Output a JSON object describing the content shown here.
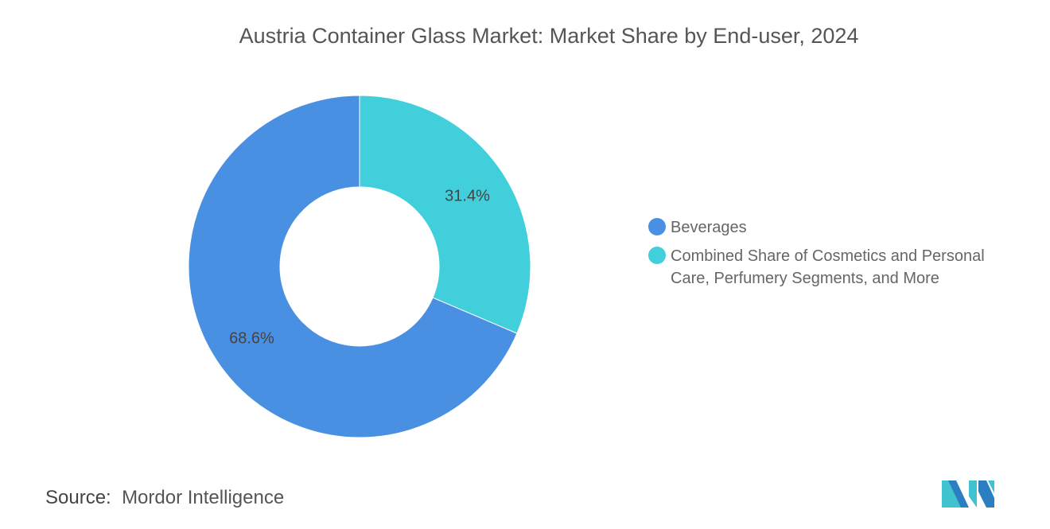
{
  "chart_data": {
    "type": "pie",
    "title": "Austria Container Glass Market: Market Share by End-user, 2024",
    "donut": true,
    "slices": [
      {
        "label": "Combined Share of Cosmetics and Personal Care, Perfumery Segments, and More",
        "value": 31.4,
        "display": "31.4%",
        "color": "#41D0DB"
      },
      {
        "label": "Beverages",
        "value": 68.6,
        "display": "68.6%",
        "color": "#4A90E2"
      }
    ],
    "legend": [
      {
        "label": "Beverages",
        "color": "#4A90E2"
      },
      {
        "label": "Combined Share of Cosmetics and Personal Care, Perfumery Segments, and More",
        "color": "#41D0DB"
      }
    ],
    "legend_placement": "right"
  },
  "source": {
    "label": "Source:",
    "value": "Mordor Intelligence"
  },
  "logo": {
    "text": "Mordor Intelligence"
  }
}
